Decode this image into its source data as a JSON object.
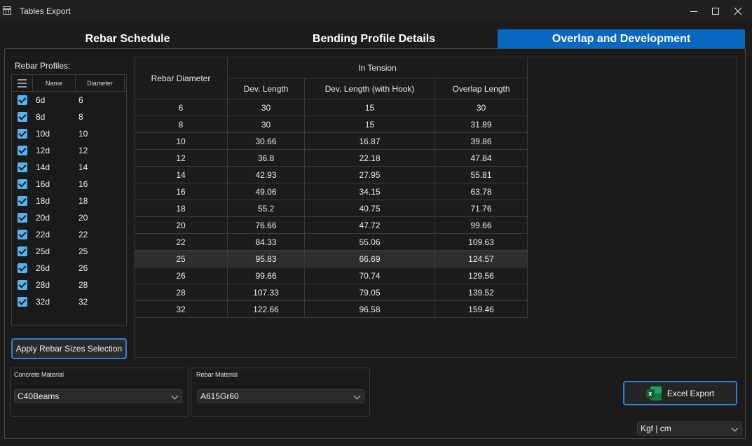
{
  "window": {
    "title": "Tables Export"
  },
  "tabs": [
    {
      "label": "Rebar Schedule"
    },
    {
      "label": "Bending Profile Details"
    },
    {
      "label": "Overlap and Development"
    }
  ],
  "profiles": {
    "label": "Rebar Profiles:",
    "col_name": "Name",
    "col_diameter": "Diameter",
    "items": [
      {
        "name": "6d",
        "diameter": "6"
      },
      {
        "name": "8d",
        "diameter": "8"
      },
      {
        "name": "10d",
        "diameter": "10"
      },
      {
        "name": "12d",
        "diameter": "12"
      },
      {
        "name": "14d",
        "diameter": "14"
      },
      {
        "name": "16d",
        "diameter": "16"
      },
      {
        "name": "18d",
        "diameter": "18"
      },
      {
        "name": "20d",
        "diameter": "20"
      },
      {
        "name": "22d",
        "diameter": "22"
      },
      {
        "name": "25d",
        "diameter": "25"
      },
      {
        "name": "26d",
        "diameter": "26"
      },
      {
        "name": "28d",
        "diameter": "28"
      },
      {
        "name": "32d",
        "diameter": "32"
      }
    ]
  },
  "apply_button": "Apply Rebar Sizes Selection",
  "table": {
    "col_diameter": "Rebar Diameter",
    "group": "In Tension",
    "col_dev": "Dev. Length",
    "col_dev_hook": "Dev. Length (with Hook)",
    "col_overlap": "Overlap Length",
    "rows": [
      [
        "6",
        "30",
        "15",
        "30"
      ],
      [
        "8",
        "30",
        "15",
        "31.89"
      ],
      [
        "10",
        "30.66",
        "16.87",
        "39.86"
      ],
      [
        "12",
        "36.8",
        "22.18",
        "47.84"
      ],
      [
        "14",
        "42.93",
        "27.95",
        "55.81"
      ],
      [
        "16",
        "49.06",
        "34.15",
        "63.78"
      ],
      [
        "18",
        "55.2",
        "40.75",
        "71.76"
      ],
      [
        "20",
        "76.66",
        "47.72",
        "99.66"
      ],
      [
        "22",
        "84.33",
        "55.06",
        "109.63"
      ],
      [
        "25",
        "95.83",
        "66.69",
        "124.57"
      ],
      [
        "26",
        "99.66",
        "70.74",
        "129.56"
      ],
      [
        "28",
        "107.33",
        "79.05",
        "139.52"
      ],
      [
        "32",
        "122.66",
        "96.58",
        "159.46"
      ]
    ]
  },
  "concrete": {
    "label": "Concrete Material",
    "value": "C40Beams"
  },
  "rebar_material": {
    "label": "Rebar Material",
    "value": "A615Gr60"
  },
  "excel_button": "Excel Export",
  "units": "Kgf | cm",
  "colors": {
    "accent": "#0868c2",
    "checkbox": "#55b3ef",
    "excel_green": "#107c41"
  }
}
